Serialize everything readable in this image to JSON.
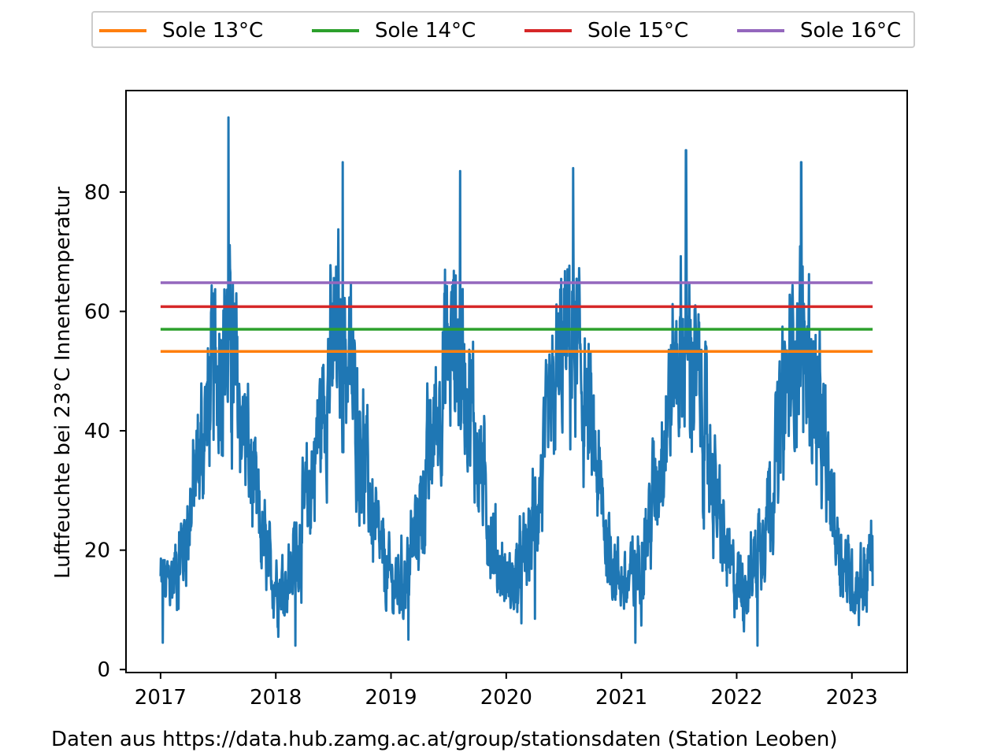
{
  "chart_data": {
    "type": "line",
    "xlabel": "",
    "ylabel": "Luftfeuchte bei 23°C Innentemperatur",
    "xlim": [
      2016.7,
      2023.48
    ],
    "ylim": [
      -0.5,
      97
    ],
    "x_ticks": [
      "2017",
      "2018",
      "2019",
      "2020",
      "2021",
      "2022",
      "2023"
    ],
    "y_ticks": [
      "0",
      "20",
      "40",
      "60",
      "80"
    ],
    "grid": false,
    "legend_placement": "top-center, above plot, 4 columns",
    "series": [
      {
        "name": "",
        "color": "#1f77b4",
        "x_range": [
          2017.0,
          2023.18
        ],
        "seasonal_profile": {
          "note_month_index_0_is_january": true,
          "monthly_mean": [
            14,
            16,
            22,
            30,
            40,
            50,
            55,
            52,
            42,
            32,
            22,
            16
          ],
          "monthly_amplitude": [
            6,
            7,
            8,
            10,
            12,
            14,
            16,
            15,
            13,
            10,
            8,
            6
          ]
        },
        "annual_peaks": [
          {
            "x": 2017.59,
            "y": 92.5
          },
          {
            "x": 2018.58,
            "y": 85
          },
          {
            "x": 2019.6,
            "y": 83.5
          },
          {
            "x": 2020.58,
            "y": 84
          },
          {
            "x": 2021.56,
            "y": 87
          },
          {
            "x": 2022.56,
            "y": 85
          }
        ],
        "annual_minima": [
          {
            "x": 2017.02,
            "y": 4.5
          },
          {
            "x": 2018.17,
            "y": 4
          },
          {
            "x": 2019.15,
            "y": 5
          },
          {
            "x": 2020.25,
            "y": 8.5
          },
          {
            "x": 2021.12,
            "y": 4.5
          },
          {
            "x": 2022.18,
            "y": 4
          }
        ],
        "end_value": 14
      },
      {
        "name": "Sole 13°C",
        "color": "#ff7f0e",
        "x": [
          2017.0,
          2023.18
        ],
        "y": [
          53.3,
          53.3
        ]
      },
      {
        "name": "Sole 14°C",
        "color": "#2ca02c",
        "x": [
          2017.0,
          2023.18
        ],
        "y": [
          57.0,
          57.0
        ]
      },
      {
        "name": "Sole 15°C",
        "color": "#d62728",
        "x": [
          2017.0,
          2023.18
        ],
        "y": [
          60.8,
          60.8
        ]
      },
      {
        "name": "Sole 16°C",
        "color": "#9467bd",
        "x": [
          2017.0,
          2023.18
        ],
        "y": [
          64.8,
          64.8
        ]
      }
    ]
  },
  "legend": {
    "items": [
      {
        "label": "Sole 13°C",
        "color": "#ff7f0e"
      },
      {
        "label": "Sole 14°C",
        "color": "#2ca02c"
      },
      {
        "label": "Sole 15°C",
        "color": "#d62728"
      },
      {
        "label": "Sole 16°C",
        "color": "#9467bd"
      }
    ]
  },
  "footer": {
    "text": "Daten aus https://data.hub.zamg.ac.at/group/stationsdaten (Station Leoben)"
  }
}
